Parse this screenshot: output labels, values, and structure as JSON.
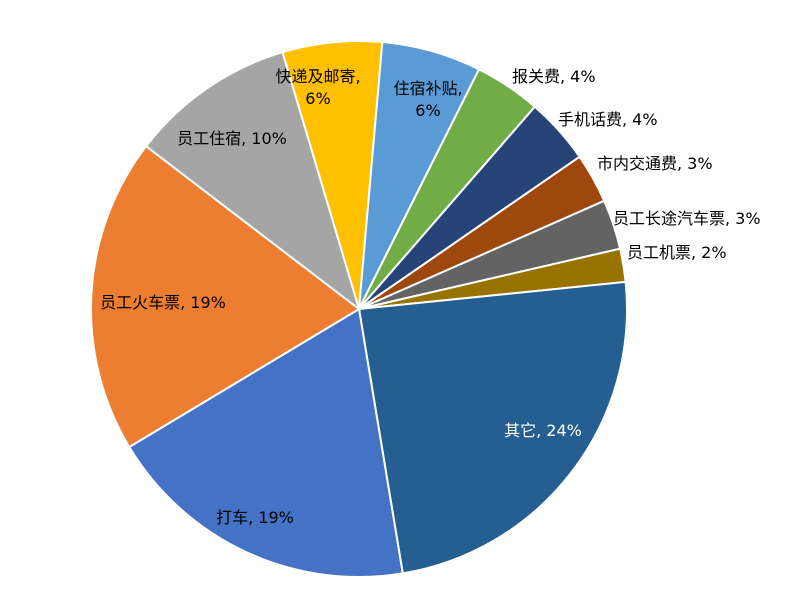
{
  "chart_data": {
    "type": "pie",
    "values": [
      6,
      6,
      4,
      4,
      3,
      3,
      2,
      24,
      19,
      19,
      10
    ],
    "value_labels": [
      "快递及邮寄,\n6%",
      "住宿补贴,\n6%",
      "报关费, 4%",
      "手机话费, 4%",
      "市内交通费, 3%",
      "员工长途汽车票, 3%",
      "员工机票, 2%",
      "其它, 24%",
      "打车, 19%",
      "员工火车票, 19%",
      "员工住宿, 10%"
    ],
    "colors": [
      "#ffc000",
      "#5b9bd5",
      "#70ad47",
      "#264478",
      "#9e480e",
      "#636363",
      "#997300",
      "#255e91",
      "#4472c4",
      "#ed7d31",
      "#a5a5a5"
    ]
  }
}
